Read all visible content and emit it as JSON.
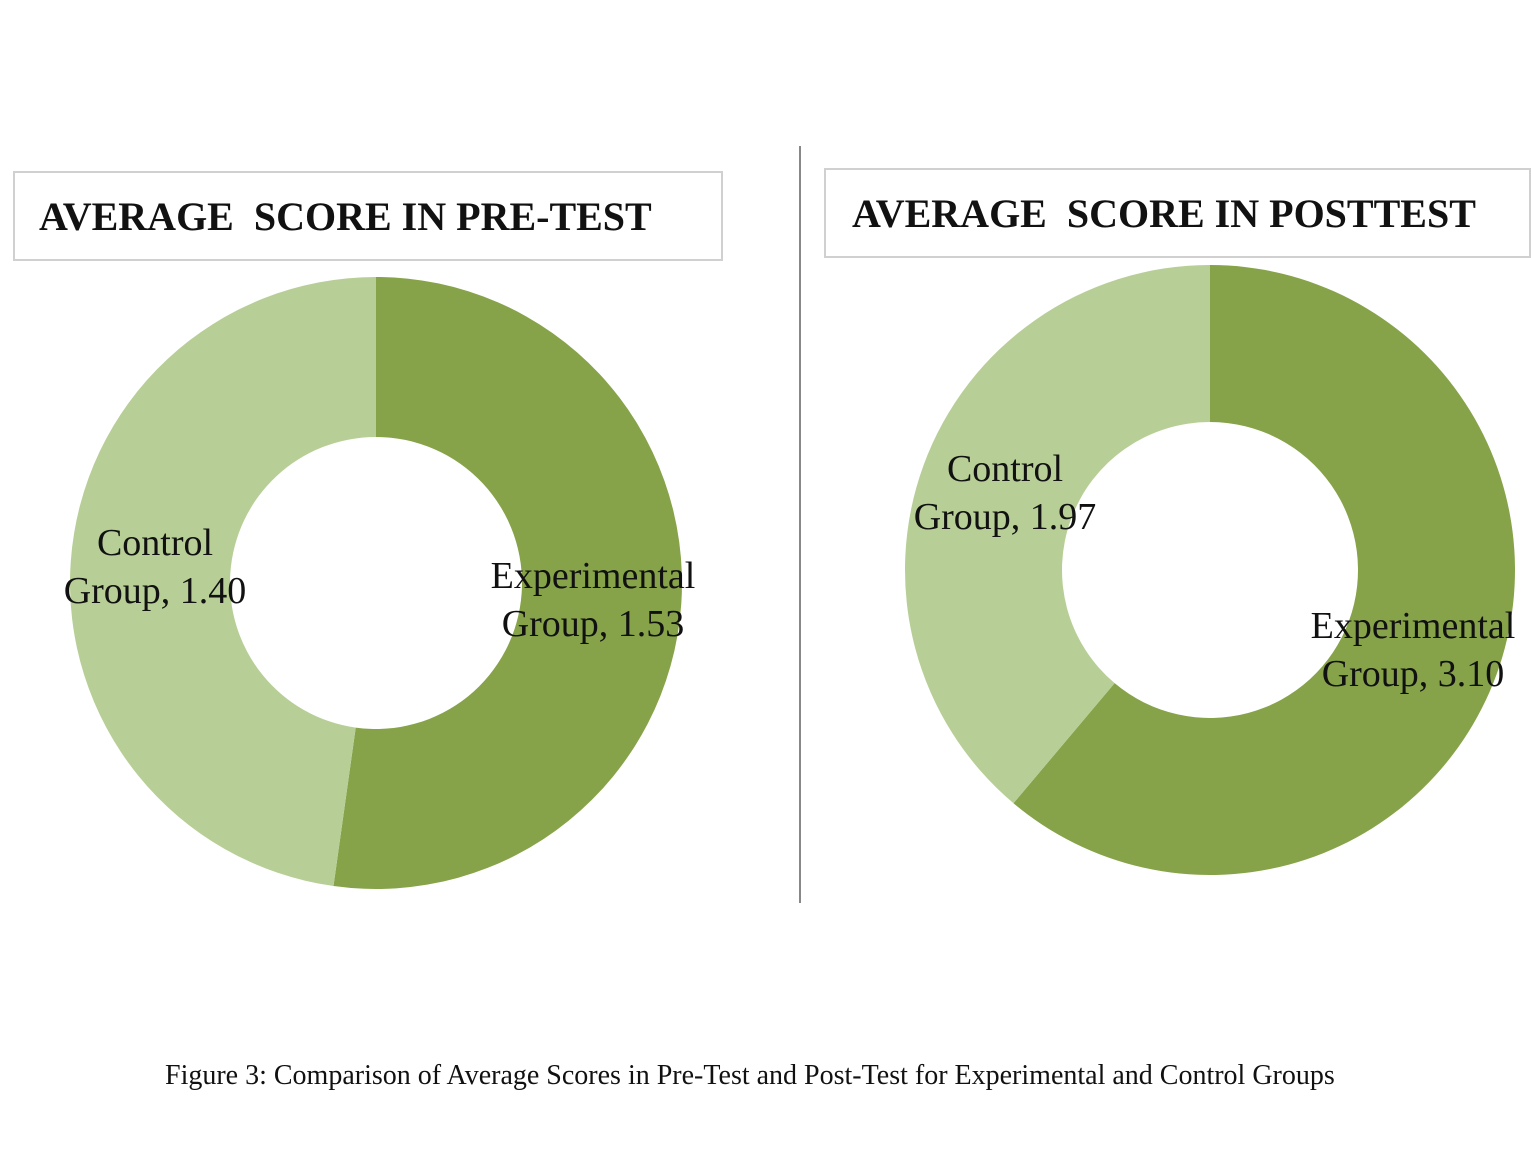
{
  "chart_data": [
    {
      "type": "donut",
      "title": "AVERAGE  SCORE IN PRE-TEST",
      "values": [
        1.53,
        1.4
      ],
      "value_labels": [
        "Experimental Group, 1.53",
        "Control Group, 1.40"
      ],
      "colors": [
        "#86a34a",
        "#b7cf96"
      ]
    },
    {
      "type": "donut",
      "title": "AVERAGE  SCORE IN POSTTEST",
      "values": [
        3.1,
        1.97
      ],
      "value_labels": [
        "Experimental Group, 3.10",
        "Control Group, 1.97"
      ],
      "colors": [
        "#86a34a",
        "#b7cf96"
      ]
    }
  ],
  "caption": "Figure 3: Comparison of Average Scores in Pre-Test and Post-Test for Experimental and Control Groups"
}
